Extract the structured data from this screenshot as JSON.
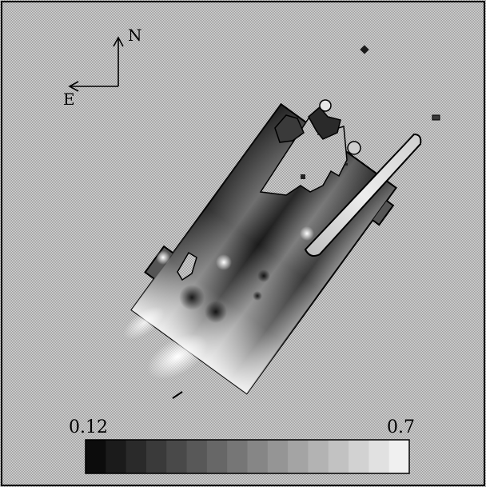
{
  "compass": {
    "north_label": "N",
    "east_label": "E"
  },
  "colorbar": {
    "min_label": "0.12",
    "max_label": "0.7",
    "min_value": 0.12,
    "max_value": 0.7,
    "steps": 16
  },
  "colors": {
    "background_dither_a": "#9a9a9a",
    "background_dither_b": "#d8d8d8",
    "outline": "#000000",
    "map_dark": "#1e1e1e",
    "map_light": "#ffffff"
  }
}
